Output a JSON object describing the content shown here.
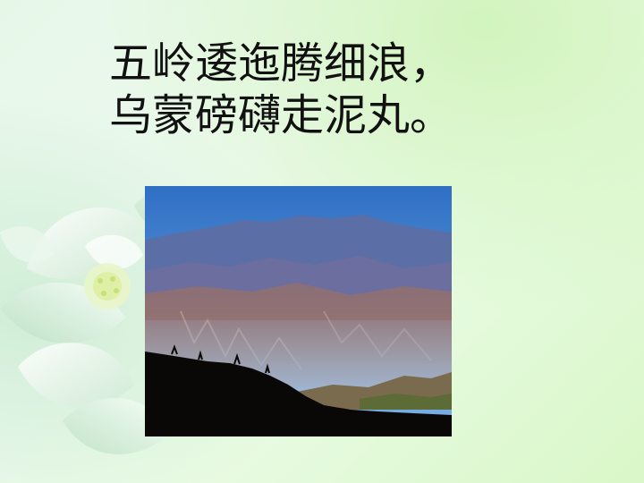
{
  "slide": {
    "poem_line_1": "五岭逶迤腾细浪，",
    "poem_line_2": "乌蒙磅礴走泥丸。",
    "image": {
      "subject": "mountain-landscape",
      "colors": {
        "sky_top": "#2f6fc4",
        "sky_bottom": "#7fb2e6",
        "far_ridge": "#5b6fa6",
        "mid_slope": "#8a6f78",
        "haze": "#9fb8d6",
        "foreground": "#0a0806"
      }
    },
    "background": {
      "colors": {
        "base": "#e6f7e8",
        "corner_tint": "#d9f7c8",
        "petal": "#ffffff"
      }
    }
  }
}
